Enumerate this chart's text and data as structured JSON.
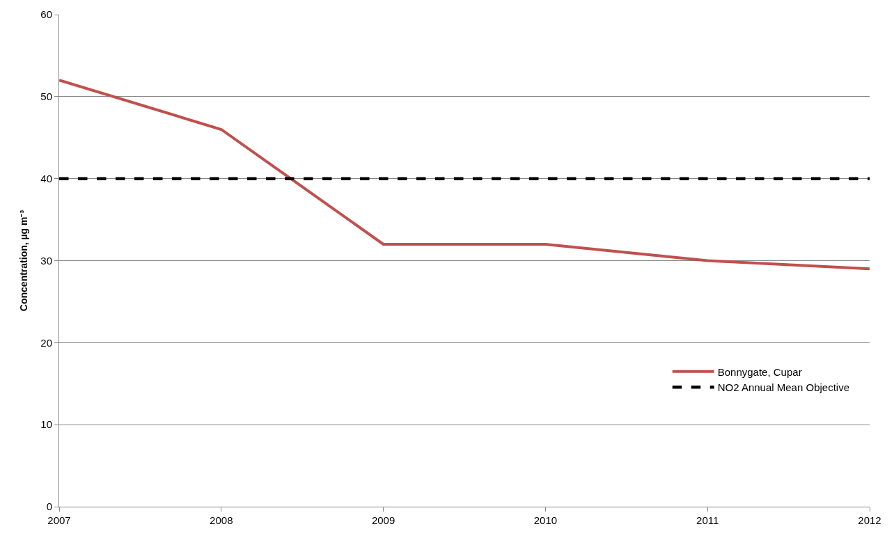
{
  "chart_data": {
    "type": "line",
    "ylabel": "Concentration, µg m⁻³",
    "x": [
      2007,
      2008,
      2009,
      2010,
      2011,
      2012
    ],
    "series": [
      {
        "name": "Bonnygate, Cupar",
        "color": "#c0504d",
        "values": [
          52,
          46,
          32,
          32,
          30,
          29
        ],
        "line_style": "solid"
      },
      {
        "name": "NO2 Annual Mean Objective",
        "color": "#000000",
        "values": [
          40,
          40,
          40,
          40,
          40,
          40
        ],
        "line_style": "dashed"
      }
    ],
    "xlim": [
      2007,
      2012
    ],
    "xticks": [
      2007,
      2008,
      2009,
      2010,
      2011,
      2012
    ],
    "ylim": [
      0,
      60
    ],
    "yticks": [
      0,
      10,
      20,
      30,
      40,
      50,
      60
    ],
    "grid": "y",
    "legend": "bottom right",
    "marker": "none"
  }
}
